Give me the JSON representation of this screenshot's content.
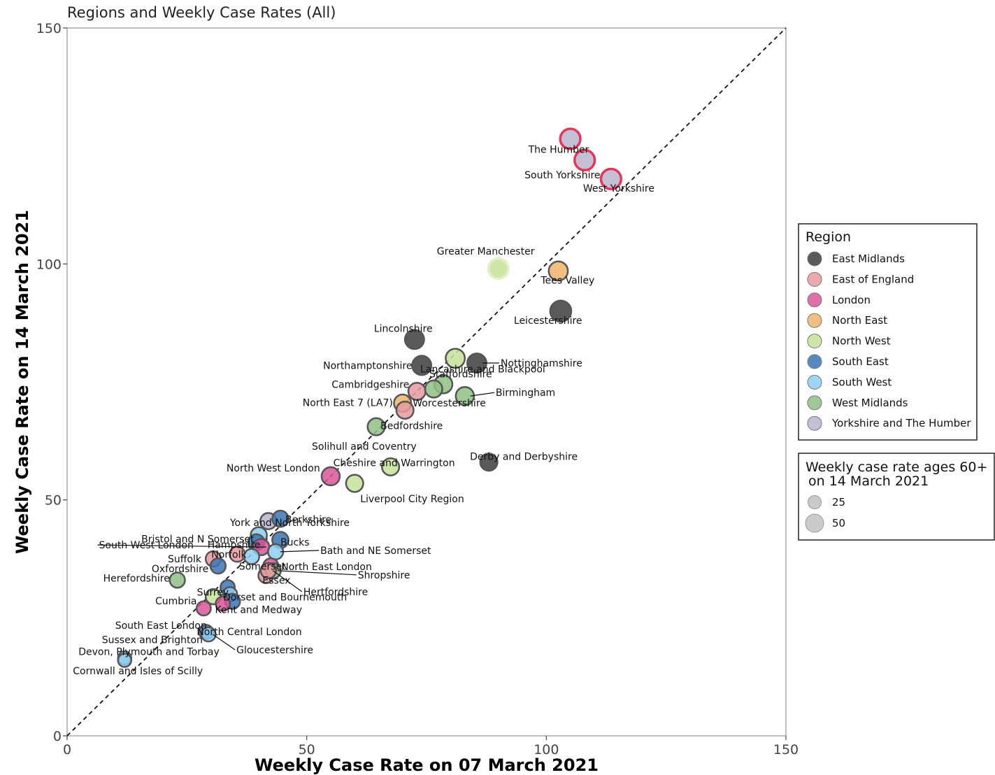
{
  "chart_data": {
    "type": "scatter",
    "title": "Regions and Weekly Case Rates (All)",
    "xlabel": "Weekly Case Rate on 07 March 2021",
    "ylabel": "Weekly Case Rate on 14 March 2021",
    "xlim": [
      0,
      150
    ],
    "ylim": [
      0,
      150
    ],
    "xticks": [
      0,
      50,
      100,
      150
    ],
    "yticks": [
      0,
      50,
      100,
      150
    ],
    "grid": false,
    "reference_line": "y = x (dashed)",
    "legend_region": {
      "title": "Region",
      "placement": "right",
      "entries": [
        {
          "name": "East Midlands",
          "color": "#3d3d3d"
        },
        {
          "name": "East of England",
          "color": "#e79aa0"
        },
        {
          "name": "London",
          "color": "#d9559a"
        },
        {
          "name": "North East",
          "color": "#f0b46c"
        },
        {
          "name": "North West",
          "color": "#c6e39a"
        },
        {
          "name": "South East",
          "color": "#3b74b4"
        },
        {
          "name": "South West",
          "color": "#8ecdf0"
        },
        {
          "name": "West Midlands",
          "color": "#8fbf85"
        },
        {
          "name": "Yorkshire and The Humber",
          "color": "#b8b4ce"
        }
      ]
    },
    "legend_size": {
      "title_line1": "Weekly case rate ages 60+",
      "title_line2": "on 14 March 2021",
      "entries": [
        {
          "label": "25",
          "value": 25
        },
        {
          "label": "50",
          "value": 50
        }
      ]
    },
    "points": [
      {
        "name": "The Humber",
        "x": 105.0,
        "y": 126.5,
        "region": "Yorkshire and The Humber",
        "size": 60,
        "edge": "#e8365a"
      },
      {
        "name": "South Yorkshire",
        "x": 108.0,
        "y": 122.0,
        "region": "Yorkshire and The Humber",
        "size": 60,
        "edge": "#e8365a"
      },
      {
        "name": "West Yorkshire",
        "x": 113.5,
        "y": 118.0,
        "region": "Yorkshire and The Humber",
        "size": 60,
        "edge": "#e8365a"
      },
      {
        "name": "Greater Manchester",
        "x": 90.0,
        "y": 99.0,
        "region": "North West",
        "size": 60,
        "edge": "#e6f0c8"
      },
      {
        "name": "Tees Valley",
        "x": 102.5,
        "y": 98.5,
        "region": "North East",
        "size": 55,
        "edge": "#555555"
      },
      {
        "name": "Leicestershire",
        "x": 103.0,
        "y": 90.0,
        "region": "East Midlands",
        "size": 65,
        "edge": "#555555"
      },
      {
        "name": "Lincolnshire",
        "x": 72.5,
        "y": 84.0,
        "region": "East Midlands",
        "size": 55,
        "edge": "#555555"
      },
      {
        "name": "Lancashire and Blackpool",
        "x": 81.0,
        "y": 80.0,
        "region": "North West",
        "size": 55,
        "edge": "#555555"
      },
      {
        "name": "Northamptonshire",
        "x": 74.0,
        "y": 78.5,
        "region": "East Midlands",
        "size": 55,
        "edge": "#555555"
      },
      {
        "name": "Nottinghamshire",
        "x": 85.5,
        "y": 79.0,
        "region": "East Midlands",
        "size": 55,
        "edge": "#555555"
      },
      {
        "name": "Staffordshire",
        "x": 78.5,
        "y": 74.5,
        "region": "West Midlands",
        "size": 50,
        "edge": "#555555"
      },
      {
        "name": "Cambridgeshire",
        "x": 73.0,
        "y": 73.0,
        "region": "East of England",
        "size": 45,
        "edge": "#555555"
      },
      {
        "name": "Birmingham",
        "x": 83.0,
        "y": 72.0,
        "region": "West Midlands",
        "size": 50,
        "edge": "#555555"
      },
      {
        "name": "Worcestershire",
        "x": 76.5,
        "y": 73.5,
        "region": "West Midlands",
        "size": 45,
        "edge": "#555555"
      },
      {
        "name": "North East 7 (LA7)",
        "x": 70.0,
        "y": 70.5,
        "region": "North East",
        "size": 45,
        "edge": "#555555"
      },
      {
        "name": "Bedfordshire",
        "x": 70.5,
        "y": 69.0,
        "region": "East of England",
        "size": 45,
        "edge": "#555555"
      },
      {
        "name": "Solihull and Coventry",
        "x": 64.5,
        "y": 65.5,
        "region": "West Midlands",
        "size": 45,
        "edge": "#555555"
      },
      {
        "name": "Cheshire and Warrington",
        "x": 67.5,
        "y": 57.0,
        "region": "North West",
        "size": 45,
        "edge": "#555555"
      },
      {
        "name": "Derby and Derbyshire",
        "x": 88.0,
        "y": 58.0,
        "region": "East Midlands",
        "size": 45,
        "edge": "#555555"
      },
      {
        "name": "North West London",
        "x": 55.0,
        "y": 55.0,
        "region": "London",
        "size": 50,
        "edge": "#555555"
      },
      {
        "name": "Liverpool City Region",
        "x": 60.0,
        "y": 53.5,
        "region": "North West",
        "size": 45,
        "edge": "#555555"
      },
      {
        "name": "York and North Yorkshire",
        "x": 42.0,
        "y": 45.5,
        "region": "Yorkshire and The Humber",
        "size": 40,
        "edge": "#555555"
      },
      {
        "name": "Berkshire",
        "x": 44.5,
        "y": 46.0,
        "region": "South East",
        "size": 40,
        "edge": "#555555"
      },
      {
        "name": "Bristol and N Somerset",
        "x": 40.0,
        "y": 42.5,
        "region": "South West",
        "size": 40,
        "edge": "#555555"
      },
      {
        "name": "Hampshire",
        "x": 39.5,
        "y": 41.0,
        "region": "South East",
        "size": 40,
        "edge": "#555555"
      },
      {
        "name": "Bucks",
        "x": 44.5,
        "y": 41.5,
        "region": "South East",
        "size": 40,
        "edge": "#555555"
      },
      {
        "name": "South West London",
        "x": 40.5,
        "y": 40.0,
        "region": "London",
        "size": 40,
        "edge": "#555555"
      },
      {
        "name": "Norfolk",
        "x": 35.5,
        "y": 38.5,
        "region": "East of England",
        "size": 35,
        "edge": "#555555"
      },
      {
        "name": "Bath and NE Somerset",
        "x": 43.5,
        "y": 39.0,
        "region": "South West",
        "size": 35,
        "edge": "#555555"
      },
      {
        "name": "Suffolk",
        "x": 30.5,
        "y": 37.5,
        "region": "East of England",
        "size": 35,
        "edge": "#555555"
      },
      {
        "name": "Somerset",
        "x": 38.5,
        "y": 38.0,
        "region": "South West",
        "size": 35,
        "edge": "#555555"
      },
      {
        "name": "North East London",
        "x": 42.5,
        "y": 36.0,
        "region": "London",
        "size": 35,
        "edge": "#555555"
      },
      {
        "name": "Oxfordshire",
        "x": 31.5,
        "y": 36.0,
        "region": "South East",
        "size": 35,
        "edge": "#555555"
      },
      {
        "name": "Essex",
        "x": 41.5,
        "y": 34.0,
        "region": "East of England",
        "size": 35,
        "edge": "#555555"
      },
      {
        "name": "Shropshire",
        "x": 43.0,
        "y": 35.0,
        "region": "West Midlands",
        "size": 35,
        "edge": "#555555"
      },
      {
        "name": "Herefordshire",
        "x": 23.0,
        "y": 33.0,
        "region": "West Midlands",
        "size": 35,
        "edge": "#555555"
      },
      {
        "name": "Surrey",
        "x": 33.5,
        "y": 31.5,
        "region": "South East",
        "size": 30,
        "edge": "#555555"
      },
      {
        "name": "Hertfordshire",
        "x": 42.0,
        "y": 35.0,
        "region": "East of England",
        "size": 35,
        "edge": "#555555"
      },
      {
        "name": "Cumbria",
        "x": 30.5,
        "y": 29.5,
        "region": "North West",
        "size": 35,
        "edge": "#555555"
      },
      {
        "name": "Dorset and Bournemouth",
        "x": 34.0,
        "y": 30.0,
        "region": "South West",
        "size": 30,
        "edge": "#555555"
      },
      {
        "name": "Kent and Medway",
        "x": 34.5,
        "y": 28.5,
        "region": "South East",
        "size": 35,
        "edge": "#555555"
      },
      {
        "name": "South East London",
        "x": 32.5,
        "y": 28.0,
        "region": "London",
        "size": 30,
        "edge": "#555555"
      },
      {
        "name": "North Central London",
        "x": 28.5,
        "y": 27.0,
        "region": "London",
        "size": 30,
        "edge": "#555555"
      },
      {
        "name": "Sussex and Brighton",
        "x": 29.0,
        "y": 22.0,
        "region": "South East",
        "size": 30,
        "edge": "#555555"
      },
      {
        "name": "Gloucestershire",
        "x": 29.5,
        "y": 21.5,
        "region": "South West",
        "size": 30,
        "edge": "#555555"
      },
      {
        "name": "Devon, Plymouth and Torbay",
        "x": 12.0,
        "y": 16.5,
        "region": "South West",
        "size": 25,
        "edge": "#555555"
      },
      {
        "name": "Cornwall and Isles of Scilly",
        "x": 12.0,
        "y": 16.0,
        "region": "South West",
        "size": 25,
        "edge": "#555555"
      }
    ]
  }
}
